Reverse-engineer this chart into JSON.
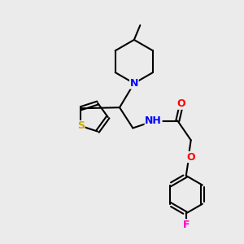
{
  "bg_color": "#ebebeb",
  "bond_color": "#000000",
  "bond_width": 1.5,
  "atom_colors": {
    "N": "#0000ff",
    "O": "#ff0000",
    "S": "#ccaa00",
    "F": "#ff00cc",
    "C": "#000000"
  },
  "figsize": [
    3.0,
    3.0
  ],
  "dpi": 100,
  "xlim": [
    0,
    10
  ],
  "ylim": [
    0,
    10
  ]
}
